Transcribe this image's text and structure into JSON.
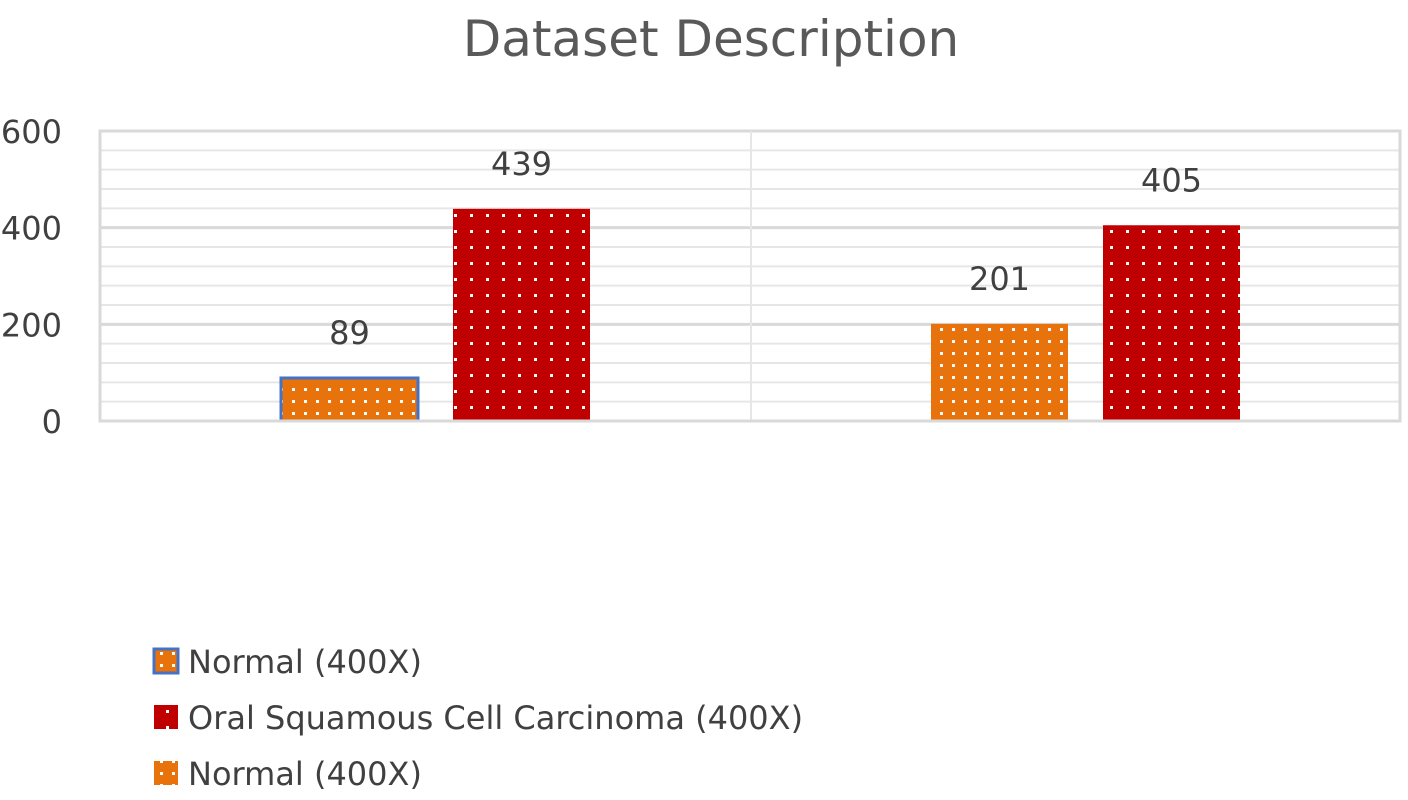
{
  "chart_data": {
    "type": "bar",
    "title": "Dataset Description",
    "xlabel": "",
    "ylabel": "",
    "ylim": [
      0,
      600
    ],
    "yticks": [
      0,
      200,
      400,
      600
    ],
    "grid": true,
    "legend_position": "bottom-left",
    "groups": [
      {
        "bars": [
          {
            "series": 0,
            "value": 89,
            "label": "89"
          },
          {
            "series": 1,
            "value": 439,
            "label": "439"
          }
        ]
      },
      {
        "bars": [
          {
            "series": 2,
            "value": 201,
            "label": "201"
          },
          {
            "series": 1,
            "value": 405,
            "label": "405"
          }
        ]
      }
    ],
    "series": [
      {
        "name": "Normal (400X)",
        "color": "#e8720c",
        "pattern": "dotted",
        "outline": "#4472c4"
      },
      {
        "name": "Oral Squamous Cell Carcinoma (400X)",
        "color": "#c00000",
        "pattern": "dotted",
        "outline": "none"
      },
      {
        "name": "Normal (400X)",
        "color": "#e8720c",
        "pattern": "dotted",
        "outline": "none"
      }
    ]
  }
}
